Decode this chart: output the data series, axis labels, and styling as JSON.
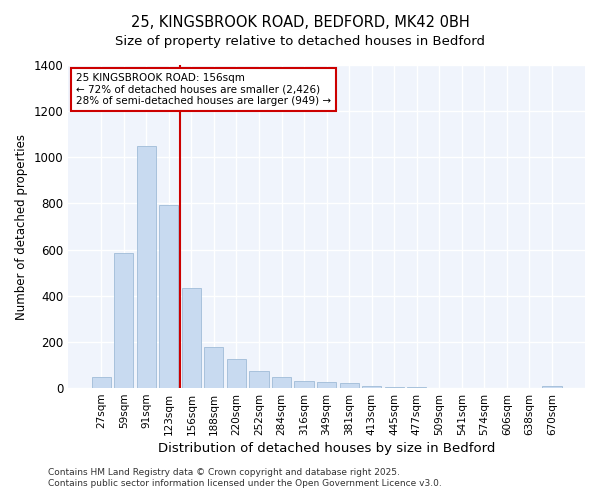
{
  "title_line1": "25, KINGSBROOK ROAD, BEDFORD, MK42 0BH",
  "title_line2": "Size of property relative to detached houses in Bedford",
  "xlabel": "Distribution of detached houses by size in Bedford",
  "ylabel": "Number of detached properties",
  "categories": [
    "27sqm",
    "59sqm",
    "91sqm",
    "123sqm",
    "156sqm",
    "188sqm",
    "220sqm",
    "252sqm",
    "284sqm",
    "316sqm",
    "349sqm",
    "381sqm",
    "413sqm",
    "445sqm",
    "477sqm",
    "509sqm",
    "541sqm",
    "574sqm",
    "606sqm",
    "638sqm",
    "670sqm"
  ],
  "values": [
    50,
    585,
    1050,
    795,
    435,
    180,
    125,
    75,
    50,
    30,
    25,
    20,
    10,
    5,
    3,
    0,
    0,
    0,
    0,
    0,
    10
  ],
  "bar_color": "#c8daf0",
  "bar_edge_color": "#a0bcd8",
  "vline_index": 4,
  "vline_color": "#cc0000",
  "ylim": [
    0,
    1400
  ],
  "yticks": [
    0,
    200,
    400,
    600,
    800,
    1000,
    1200,
    1400
  ],
  "annotation_line1": "25 KINGSBROOK ROAD: 156sqm",
  "annotation_line2": "← 72% of detached houses are smaller (2,426)",
  "annotation_line3": "28% of semi-detached houses are larger (949) →",
  "annotation_box_color": "#cc0000",
  "footer_line1": "Contains HM Land Registry data © Crown copyright and database right 2025.",
  "footer_line2": "Contains public sector information licensed under the Open Government Licence v3.0.",
  "bg_color": "#ffffff",
  "plot_bg_color": "#f0f4fc",
  "grid_color": "#ffffff"
}
